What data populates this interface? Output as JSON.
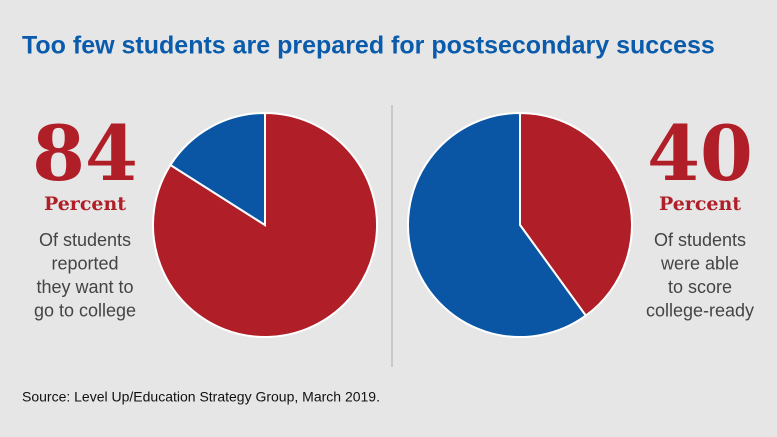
{
  "title": "Too few students are prepared for postsecondary success",
  "source": "Source: Level Up/Education Strategy Group, March 2019.",
  "chart_data": [
    {
      "type": "pie",
      "values": [
        84,
        16
      ],
      "colors": [
        "#b01e27",
        "#0a56a5"
      ],
      "unit": "Percent",
      "caption": [
        "Of students",
        "reported",
        "they want to",
        "go to college"
      ]
    },
    {
      "type": "pie",
      "values": [
        40,
        60
      ],
      "colors": [
        "#b01e27",
        "#0a56a5"
      ],
      "unit": "Percent",
      "caption": [
        "Of students",
        "were able",
        "to score",
        "college-ready"
      ]
    }
  ]
}
